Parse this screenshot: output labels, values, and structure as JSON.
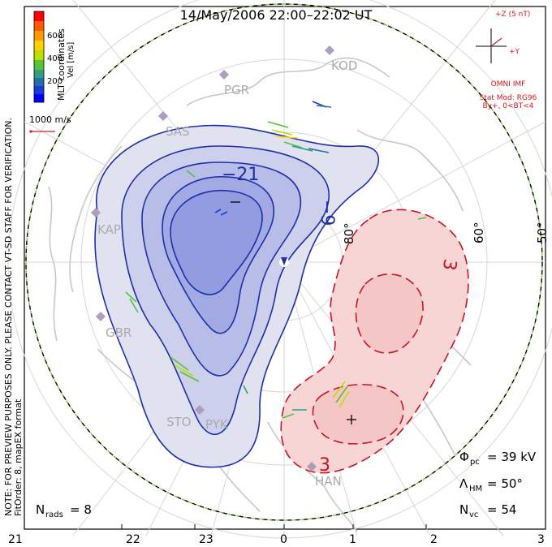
{
  "title": "14/May/2006 22:00–22:02 UT",
  "side_note_line1": "NOTE: FOR PREVIEW PURPOSES ONLY. PLEASE CONTACT VT-SD STAFF FOR VERIFICATION.",
  "side_note_line2": "FitOrder: 8, mapEX format",
  "colorbar": {
    "label": "Vel [m/s]",
    "coords_label": "MLT coordinates",
    "ticks": [
      "600",
      "400",
      "200"
    ],
    "colors": [
      "#ff0000",
      "#ff5a00",
      "#ff9a00",
      "#ffd200",
      "#b9e000",
      "#56c23a",
      "#2fa07b",
      "#246fa8",
      "#1b3ad6",
      "#0000ff"
    ]
  },
  "velocity_scale_label": "1000 m/s",
  "imf": {
    "z_label": "+Z (5 nT)",
    "y_label": "+Y",
    "model_line1": "OMNI IMF",
    "model_line2": "Stat Mod: RG96",
    "model_line3": "By+, 0<BT<4"
  },
  "stations": [
    "PGR",
    "KOD",
    "SAS",
    "KAP",
    "GBR",
    "STO",
    "PYK",
    "HAN"
  ],
  "contours": {
    "blue_labels": [
      "−21",
      "−9"
    ],
    "red_labels": [
      "3",
      "3"
    ]
  },
  "latitude_labels": [
    "80°",
    "60°",
    "50°"
  ],
  "mlt_labels": [
    "21",
    "22",
    "23",
    "0",
    "1",
    "2",
    "3"
  ],
  "stats": {
    "phi_pc_symbol": "Φ",
    "phi_pc_sub": "pc",
    "phi_pc_value": "= 39 kV",
    "lambda_symbol": "Λ",
    "lambda_sub": "HM",
    "lambda_value": "= 50°",
    "nvc_symbol": "N",
    "nvc_sub": "vc",
    "nvc_value": "= 54",
    "nrads_symbol": "N",
    "nrads_sub": "rads",
    "nrads_value": "= 8"
  }
}
